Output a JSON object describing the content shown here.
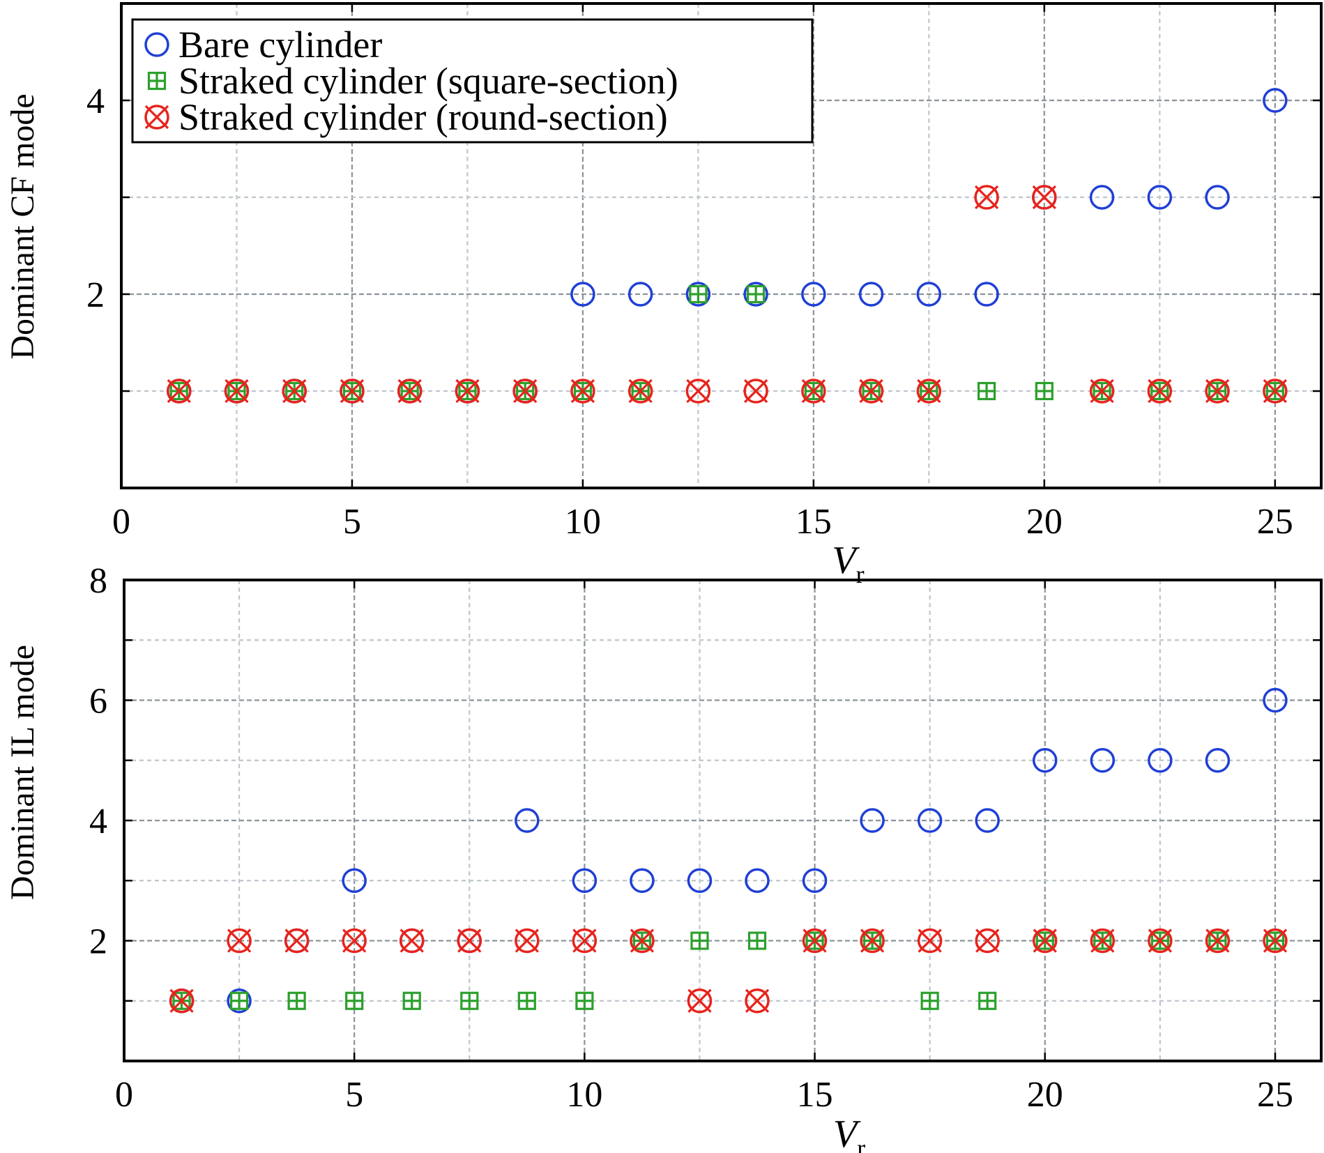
{
  "chart_data": [
    {
      "type": "scatter",
      "xlabel": "V",
      "xlabel_sub": "r",
      "ylabel": "Dominant CF mode",
      "xlim": [
        0,
        26
      ],
      "ylim": [
        0,
        5
      ],
      "xticks": [
        0,
        5,
        10,
        15,
        20,
        25
      ],
      "xtick_labels": [
        "0",
        "5",
        "10",
        "15",
        "20",
        "25"
      ],
      "xgrid": [
        2.5,
        5,
        7.5,
        10,
        12.5,
        15,
        17.5,
        20,
        22.5,
        25
      ],
      "yticks": [
        2,
        4
      ],
      "ytick_labels": [
        "2",
        "4"
      ],
      "ygrid": [
        1,
        2,
        3,
        4
      ],
      "grid": true,
      "legend": {
        "placement": "top-left",
        "entries": [
          "Bare cylinder",
          "Straked cylinder (square-section)",
          "Straked cylinder (round-section)"
        ]
      },
      "series": [
        {
          "name": "Bare cylinder",
          "marker": "circle",
          "color": "#1f3fd6",
          "x": [
            1.25,
            2.5,
            3.75,
            5,
            6.25,
            7.5,
            8.75,
            10,
            11.25,
            12.5,
            13.75,
            15,
            16.25,
            17.5,
            18.75,
            20,
            21.25,
            22.5,
            23.75,
            25
          ],
          "y": [
            1,
            1,
            1,
            1,
            1,
            1,
            1,
            2,
            2,
            2,
            2,
            2,
            2,
            2,
            2,
            3,
            3,
            3,
            3,
            4
          ]
        },
        {
          "name": "Straked cylinder (square-section)",
          "marker": "boxplus",
          "color": "#2ca02c",
          "x": [
            1.25,
            2.5,
            3.75,
            5,
            6.25,
            7.5,
            8.75,
            10,
            11.25,
            12.5,
            13.75,
            15,
            16.25,
            17.5,
            18.75,
            20,
            21.25,
            22.5,
            23.75,
            25
          ],
          "y": [
            1,
            1,
            1,
            1,
            1,
            1,
            1,
            1,
            1,
            2,
            2,
            1,
            1,
            1,
            1,
            1,
            1,
            1,
            1,
            1
          ]
        },
        {
          "name": "Straked cylinder (round-section)",
          "marker": "otimes",
          "color": "#e8231c",
          "x": [
            1.25,
            2.5,
            3.75,
            5,
            6.25,
            7.5,
            8.75,
            10,
            11.25,
            12.5,
            13.75,
            15,
            16.25,
            17.5,
            18.75,
            20,
            21.25,
            22.5,
            23.75,
            25
          ],
          "y": [
            1,
            1,
            1,
            1,
            1,
            1,
            1,
            1,
            1,
            1,
            1,
            1,
            1,
            1,
            3,
            3,
            1,
            1,
            1,
            1
          ]
        }
      ]
    },
    {
      "type": "scatter",
      "xlabel": "V",
      "xlabel_sub": "r",
      "ylabel": "Dominant IL mode",
      "xlim": [
        0,
        26
      ],
      "ylim": [
        0,
        8
      ],
      "xticks": [
        0,
        5,
        10,
        15,
        20,
        25
      ],
      "xtick_labels": [
        "0",
        "5",
        "10",
        "15",
        "20",
        "25"
      ],
      "xgrid": [
        2.5,
        5,
        7.5,
        10,
        12.5,
        15,
        17.5,
        20,
        22.5,
        25
      ],
      "yticks": [
        2,
        4,
        6,
        8
      ],
      "ytick_labels": [
        "2",
        "4",
        "6",
        "8"
      ],
      "ygrid": [
        1,
        2,
        3,
        4,
        5,
        6,
        7
      ],
      "grid": true,
      "series": [
        {
          "name": "Bare cylinder",
          "marker": "circle",
          "color": "#1f3fd6",
          "x": [
            1.25,
            2.5,
            3.75,
            5,
            6.25,
            7.5,
            8.75,
            10,
            11.25,
            12.5,
            13.75,
            15,
            16.25,
            17.5,
            18.75,
            20,
            21.25,
            22.5,
            23.75,
            25
          ],
          "y": [
            1,
            1,
            2,
            3,
            2,
            2,
            4,
            3,
            3,
            3,
            3,
            3,
            4,
            4,
            4,
            5,
            5,
            5,
            5,
            6
          ]
        },
        {
          "name": "Straked cylinder (square-section)",
          "marker": "boxplus",
          "color": "#2ca02c",
          "x": [
            1.25,
            2.5,
            3.75,
            5,
            6.25,
            7.5,
            8.75,
            10,
            11.25,
            12.5,
            13.75,
            15,
            16.25,
            17.5,
            18.75,
            20,
            21.25,
            22.5,
            23.75,
            25
          ],
          "y": [
            1,
            1,
            1,
            1,
            1,
            1,
            1,
            1,
            2,
            2,
            2,
            2,
            2,
            1,
            1,
            2,
            2,
            2,
            2,
            2
          ]
        },
        {
          "name": "Straked cylinder (round-section)",
          "marker": "otimes",
          "color": "#e8231c",
          "x": [
            1.25,
            2.5,
            3.75,
            5,
            6.25,
            7.5,
            8.75,
            10,
            11.25,
            12.5,
            13.75,
            15,
            16.25,
            17.5,
            18.75,
            20,
            21.25,
            22.5,
            23.75,
            25
          ],
          "y": [
            1,
            2,
            2,
            2,
            2,
            2,
            2,
            2,
            2,
            1,
            1,
            2,
            2,
            2,
            2,
            2,
            2,
            2,
            2,
            2
          ]
        }
      ]
    }
  ]
}
